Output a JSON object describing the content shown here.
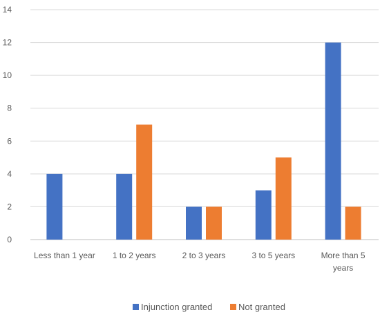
{
  "chart_data": {
    "type": "bar",
    "categories": [
      "Less than 1 year",
      "1 to 2 years",
      "2 to 3 years",
      "3 to 5 years",
      "More than 5 years"
    ],
    "series": [
      {
        "name": "Injunction granted",
        "color": "#4472C4",
        "values": [
          4,
          4,
          2,
          3,
          12
        ]
      },
      {
        "name": "Not granted",
        "color": "#ED7D31",
        "values": [
          0,
          7,
          2,
          5,
          2
        ]
      }
    ],
    "ylim": [
      0,
      14
    ],
    "yticks": [
      0,
      2,
      4,
      6,
      8,
      10,
      12,
      14
    ],
    "grid": true,
    "legend": "bottom",
    "title": "",
    "xlabel": "",
    "ylabel": ""
  }
}
